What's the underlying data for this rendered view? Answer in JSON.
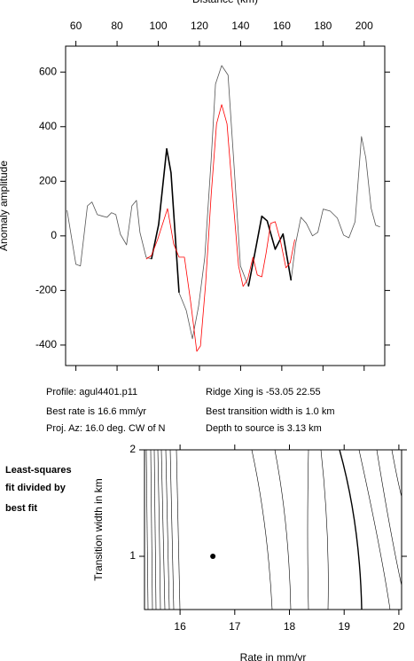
{
  "chart_data": [
    {
      "type": "line",
      "x_label": "Distance (km)",
      "y_label": "Anomaly amplitude",
      "xlim": [
        55,
        210
      ],
      "ylim": [
        -475,
        695
      ],
      "xticks": [
        60,
        80,
        100,
        120,
        140,
        160,
        180,
        200
      ],
      "yticks": [
        -400,
        -200,
        0,
        200,
        400,
        600
      ],
      "series": [
        {
          "color": "#555555",
          "width": 0.8,
          "x": [
            55.7,
            60,
            62.2,
            65.6,
            67.8,
            70.4,
            73,
            75.1,
            77.3,
            79.4,
            81.6,
            84.6,
            87.2,
            89.4,
            91.1,
            94.1,
            96.7,
            100.2,
            104.1,
            106.2,
            110.1,
            113.6,
            116.6,
            119.6,
            122.6,
            125.7,
            127.8,
            130.8,
            133.9,
            136.9,
            139.9,
            143.8,
            146.8,
            150.3,
            152.9,
            156.8,
            160.6,
            164.5,
            166.7,
            169.3,
            171.9,
            174.9,
            177.5,
            180.1,
            183.5,
            187,
            190,
            192.6,
            195.6,
            198.7,
            200.8,
            203.4,
            205.6,
            207.7
          ],
          "values": [
            94,
            -104,
            -110,
            110,
            124,
            78,
            72,
            68,
            85,
            78,
            6,
            -33,
            110,
            130,
            13,
            -78,
            -85,
            42,
            319,
            231,
            -208,
            -273,
            -377,
            -257,
            -78,
            280,
            556,
            624,
            589,
            247,
            -110,
            -185,
            -68,
            72,
            55,
            -49,
            7,
            -163,
            -29,
            68,
            46,
            0,
            13,
            98,
            91,
            65,
            3,
            -7,
            52,
            364,
            286,
            101,
            39,
            33
          ]
        },
        {
          "color": "#000000",
          "width": 1.6,
          "x": [
            96.7,
            100.2,
            104.1,
            106.2,
            110.1
          ],
          "values": [
            -85,
            42,
            319,
            231,
            -208
          ]
        },
        {
          "color": "#000000",
          "width": 1.6,
          "x": [
            143.8,
            146.8,
            150.3,
            152.9,
            156.8,
            160.6,
            164.5
          ],
          "values": [
            -185,
            -68,
            72,
            55,
            -49,
            7,
            -163
          ]
        },
        {
          "color": "#ff0000",
          "width": 0.8,
          "x": [
            94.1,
            96.7,
            99.7,
            104.5,
            107.5,
            110.1,
            112.7,
            115.7,
            118.7,
            120.5,
            123,
            125.7,
            128.3,
            130.8,
            133.4,
            136.5,
            139,
            141.2,
            143.4,
            146,
            148.1,
            150.3,
            152.4,
            154.6,
            156.8,
            159.4,
            162,
            164.1,
            166.3
          ],
          "values": [
            -85,
            -72,
            -13,
            100,
            -30,
            -78,
            -78,
            -240,
            -423,
            -403,
            -176,
            150,
            410,
            481,
            410,
            117,
            -110,
            -185,
            -160,
            -78,
            -143,
            -150,
            -62,
            46,
            52,
            -20,
            -117,
            -98,
            -13
          ]
        }
      ],
      "annotations": [
        "Profile: agul4401.p11",
        "Ridge Xing is -53.05 22.55",
        "Best rate is 16.6 mm/yr",
        "Best transition width is 1.0 km",
        "Proj. Az: 16.0 deg. CW of N",
        "Depth to source is   3.13 km"
      ]
    },
    {
      "type": "scatter",
      "x_label": "Rate in mm/yr",
      "y_label": "Transition width in km",
      "xlim": [
        15.35,
        20.05
      ],
      "ylim": [
        0.5,
        2
      ],
      "xticks": [
        16,
        17,
        18,
        19,
        20
      ],
      "yticks": [
        1,
        2
      ],
      "x": [
        16.6
      ],
      "values": [
        1
      ],
      "color": "#000000",
      "annotations": [
        "Least-squares",
        "fit divided by",
        "best fit"
      ]
    }
  ]
}
